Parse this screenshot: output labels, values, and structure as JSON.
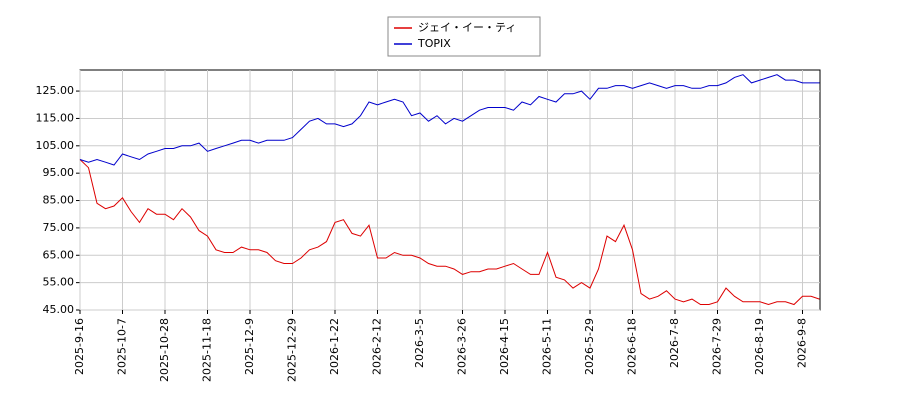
{
  "chart_data": {
    "type": "line",
    "categories": [
      "2025-9-16",
      null,
      null,
      null,
      null,
      "2025-10-7",
      null,
      null,
      null,
      null,
      "2025-10-28",
      null,
      null,
      null,
      null,
      "2025-11-18",
      null,
      null,
      null,
      null,
      "2025-12-9",
      null,
      null,
      null,
      null,
      "2025-12-29",
      null,
      null,
      null,
      null,
      "2026-1-22",
      null,
      null,
      null,
      null,
      "2026-2-12",
      null,
      null,
      null,
      null,
      "2026-3-5",
      null,
      null,
      null,
      null,
      "2026-3-26",
      null,
      null,
      null,
      null,
      "2026-4-15",
      null,
      null,
      null,
      null,
      "2026-5-11",
      null,
      null,
      null,
      null,
      "2026-5-29",
      null,
      null,
      null,
      null,
      "2026-6-18",
      null,
      null,
      null,
      null,
      "2026-7-8",
      null,
      null,
      null,
      null,
      "2026-7-29",
      null,
      null,
      null,
      null,
      "2026-8-19",
      null,
      null,
      null,
      null,
      "2026-9-8",
      null,
      null
    ],
    "series": [
      {
        "name": "ジェイ・イー・ティ",
        "color": "#dd0000",
        "values": [
          100,
          97,
          84,
          82,
          83,
          86,
          81,
          77,
          82,
          80,
          80,
          78,
          82,
          79,
          74,
          72,
          67,
          66,
          66,
          68,
          67,
          67,
          66,
          63,
          62,
          62,
          64,
          67,
          68,
          70,
          77,
          78,
          73,
          72,
          76,
          64,
          64,
          66,
          65,
          65,
          64,
          62,
          61,
          61,
          60,
          58,
          59,
          59,
          60,
          60,
          61,
          62,
          60,
          58,
          58,
          66,
          57,
          56,
          53,
          55,
          53,
          60,
          72,
          70,
          76,
          67,
          51,
          49,
          50,
          52,
          49,
          48,
          49,
          47,
          47,
          48,
          53,
          50,
          48,
          48,
          48,
          47,
          48,
          48,
          47,
          50,
          50,
          49
        ]
      },
      {
        "name": "TOPIX",
        "color": "#0000cc",
        "values": [
          100,
          99,
          100,
          99,
          98,
          102,
          101,
          100,
          102,
          103,
          104,
          104,
          105,
          105,
          106,
          103,
          104,
          105,
          106,
          107,
          107,
          106,
          107,
          107,
          107,
          108,
          111,
          114,
          115,
          113,
          113,
          112,
          113,
          116,
          121,
          120,
          121,
          122,
          121,
          116,
          117,
          114,
          116,
          113,
          115,
          114,
          116,
          118,
          119,
          119,
          119,
          118,
          121,
          120,
          123,
          122,
          121,
          124,
          124,
          125,
          122,
          126,
          126,
          127,
          127,
          126,
          127,
          128,
          127,
          126,
          127,
          127,
          126,
          126,
          127,
          127,
          128,
          130,
          131,
          128,
          129,
          130,
          131,
          129,
          129,
          128,
          128,
          128
        ]
      }
    ],
    "ylim": [
      45,
      132.7
    ],
    "yticks": [
      {
        "value": 45,
        "label": "45.00"
      },
      {
        "value": 55,
        "label": "55.00"
      },
      {
        "value": 65,
        "label": "65.00"
      },
      {
        "value": 75,
        "label": "75.00"
      },
      {
        "value": 85,
        "label": "85.00"
      },
      {
        "value": 95,
        "label": "95.00"
      },
      {
        "value": 105,
        "label": "105.00"
      },
      {
        "value": 115,
        "label": "115.00"
      },
      {
        "value": 125,
        "label": "125.00"
      }
    ],
    "grid": true
  }
}
